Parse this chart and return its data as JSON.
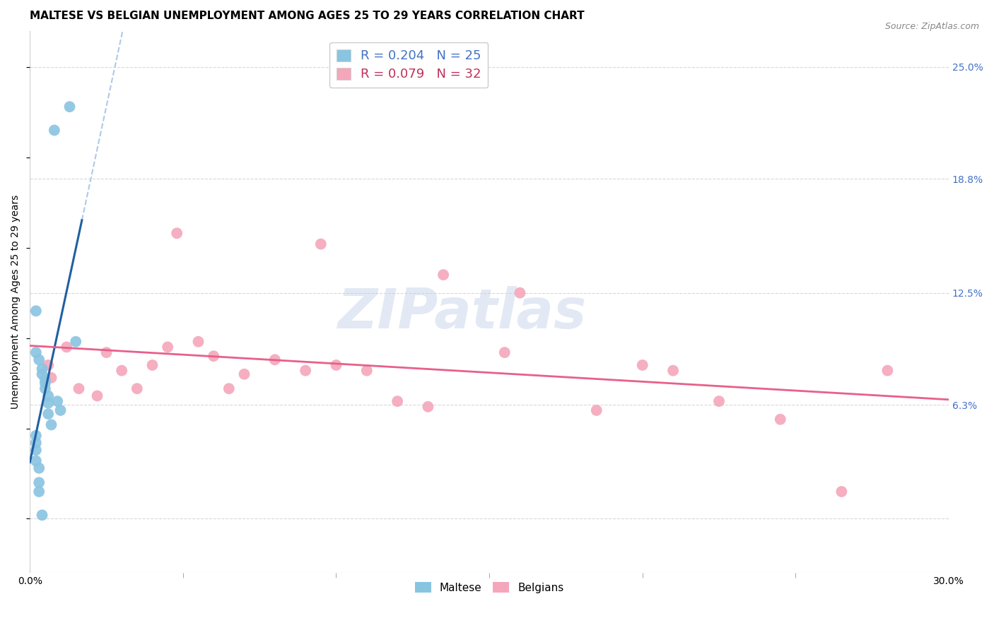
{
  "title": "MALTESE VS BELGIAN UNEMPLOYMENT AMONG AGES 25 TO 29 YEARS CORRELATION CHART",
  "source": "Source: ZipAtlas.com",
  "ylabel": "Unemployment Among Ages 25 to 29 years",
  "xlim": [
    0.0,
    0.3
  ],
  "ylim": [
    -0.03,
    0.27
  ],
  "ytick_right_vals": [
    0.0,
    0.063,
    0.125,
    0.188,
    0.25
  ],
  "ytick_right_labels": [
    "",
    "6.3%",
    "12.5%",
    "18.8%",
    "25.0%"
  ],
  "maltese_R": 0.204,
  "maltese_N": 25,
  "belgian_R": 0.079,
  "belgian_N": 32,
  "maltese_color": "#89c4e1",
  "belgian_color": "#f4a6bb",
  "maltese_line_color": "#2060a0",
  "belgian_line_color": "#e8608a",
  "dashed_line_color": "#b0c8e8",
  "background_color": "#ffffff",
  "grid_color": "#d8d8d8",
  "maltese_x": [
    0.008,
    0.013,
    0.002,
    0.002,
    0.003,
    0.004,
    0.004,
    0.005,
    0.005,
    0.005,
    0.006,
    0.006,
    0.006,
    0.007,
    0.002,
    0.002,
    0.002,
    0.002,
    0.003,
    0.003,
    0.009,
    0.01,
    0.015,
    0.003,
    0.004
  ],
  "maltese_y": [
    0.215,
    0.228,
    0.115,
    0.092,
    0.088,
    0.083,
    0.08,
    0.077,
    0.075,
    0.072,
    0.068,
    0.064,
    0.058,
    0.052,
    0.046,
    0.042,
    0.038,
    0.032,
    0.028,
    0.02,
    0.065,
    0.06,
    0.098,
    0.015,
    0.002
  ],
  "belgian_x": [
    0.006,
    0.007,
    0.012,
    0.016,
    0.022,
    0.025,
    0.03,
    0.035,
    0.04,
    0.045,
    0.048,
    0.055,
    0.06,
    0.065,
    0.07,
    0.08,
    0.09,
    0.095,
    0.1,
    0.11,
    0.12,
    0.13,
    0.135,
    0.155,
    0.16,
    0.185,
    0.2,
    0.21,
    0.225,
    0.245,
    0.265,
    0.28
  ],
  "belgian_y": [
    0.085,
    0.078,
    0.095,
    0.072,
    0.068,
    0.092,
    0.082,
    0.072,
    0.085,
    0.095,
    0.158,
    0.098,
    0.09,
    0.072,
    0.08,
    0.088,
    0.082,
    0.152,
    0.085,
    0.082,
    0.065,
    0.062,
    0.135,
    0.092,
    0.125,
    0.06,
    0.085,
    0.082,
    0.065,
    0.055,
    0.015,
    0.082
  ],
  "title_fontsize": 11,
  "axis_label_fontsize": 10,
  "tick_fontsize": 10,
  "legend_fontsize": 12,
  "source_fontsize": 9
}
